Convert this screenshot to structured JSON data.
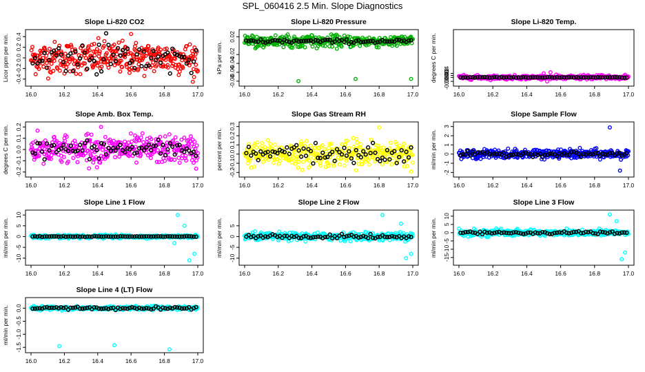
{
  "title": "SPL_060416  2.5 Min. Slope Diagnostics",
  "chart_data": [
    {
      "type": "scatter",
      "title": "Slope Li-820 CO2",
      "ylabel": "Licor ppm per min.",
      "color": "#ff0000",
      "xlim": [
        16.0,
        17.0
      ],
      "ylim": [
        -0.48,
        0.48
      ],
      "xticks": [
        "16.0",
        "16.2",
        "16.4",
        "16.6",
        "16.8",
        "17.0"
      ],
      "yticks": [
        -0.4,
        -0.2,
        0.0,
        0.2,
        0.4
      ],
      "ytick_labels": [
        "-0.4",
        "-0.2",
        "0.0",
        "0.2",
        "0.4"
      ],
      "spread": 0.27,
      "outliers": [
        [
          16.6,
          0.45
        ],
        [
          16.97,
          -0.45
        ]
      ],
      "bold_every": 5,
      "bold_scale": 1
    },
    {
      "type": "scatter",
      "title": "Slope Li-820 Pressure",
      "ylabel": "kPa per min.",
      "color": "#00b000",
      "xlim": [
        16.0,
        17.0
      ],
      "ylim": [
        -0.085,
        0.03
      ],
      "xticks": [
        "16.0",
        "16.2",
        "16.4",
        "16.6",
        "16.8",
        "17.0"
      ],
      "yticks": [
        -0.08,
        -0.06,
        -0.04,
        -0.02,
        0.02
      ],
      "ytick_labels": [
        "-0.08",
        "-0.06",
        "-0.04",
        "-0.02",
        "0.02"
      ],
      "spread": 0.012,
      "center": 0.01,
      "outliers": [
        [
          16.32,
          -0.08
        ],
        [
          16.66,
          -0.075
        ],
        [
          16.99,
          -0.075
        ]
      ],
      "bold_every": 4,
      "bold_scale": 0.4
    },
    {
      "type": "scatter",
      "title": "Slope Li-820 Temp.",
      "ylabel": "degrees C per min.",
      "color": "#ff00ff",
      "xlim": [
        16.0,
        17.0
      ],
      "ylim": [
        -0.006,
        0.045
      ],
      "xticks": [
        "16.0",
        "16.2",
        "16.4",
        "16.6",
        "16.8",
        "17.0"
      ],
      "yticks": [
        -0.004,
        0.0,
        0.002,
        0.004
      ],
      "ytick_labels": [
        "-0.004",
        "0.000",
        "0.002",
        "0.004"
      ],
      "spread": 0.0018,
      "outliers": [
        [
          16.5,
          0.004
        ],
        [
          16.52,
          -0.004
        ],
        [
          16.54,
          0.005
        ]
      ],
      "bold_every": 3,
      "bold_scale": 0.2
    },
    {
      "type": "scatter",
      "title": "Slope Amb. Box Temp.",
      "ylabel": "degrees C per min.",
      "color": "#ff00ff",
      "xlim": [
        16.0,
        17.0
      ],
      "ylim": [
        -0.22,
        0.22
      ],
      "xticks": [
        "16.0",
        "16.2",
        "16.4",
        "16.6",
        "16.8",
        "17.0"
      ],
      "yticks": [
        -0.2,
        -0.1,
        0.0,
        0.1,
        0.2
      ],
      "ytick_labels": [
        "-0.2",
        "-0.1",
        "0.0",
        "0.1",
        "0.2"
      ],
      "spread": 0.11,
      "outliers": [
        [
          16.42,
          0.2
        ],
        [
          16.99,
          -0.17
        ]
      ],
      "bold_every": 5,
      "bold_scale": 0.8
    },
    {
      "type": "scatter",
      "title": "Slope Gas Stream RH",
      "ylabel": "percent per min.",
      "color": "#ffff00",
      "xlim": [
        16.0,
        17.0
      ],
      "ylim": [
        -0.22,
        0.32
      ],
      "xticks": [
        "16.0",
        "16.2",
        "16.4",
        "16.6",
        "16.8",
        "17.0"
      ],
      "yticks": [
        -0.2,
        -0.1,
        0.0,
        0.1,
        0.2,
        0.3
      ],
      "ytick_labels": [
        "-0.2",
        "-0.1",
        "0.0",
        "0.1",
        "0.2",
        "0.3"
      ],
      "spread": 0.12,
      "outliers": [
        [
          16.8,
          0.29
        ],
        [
          16.99,
          -0.19
        ]
      ],
      "bold_every": 5,
      "bold_scale": 0.9
    },
    {
      "type": "scatter",
      "title": "Slope Sample Flow",
      "ylabel": "ml/min per min.",
      "color": "#0000ff",
      "xlim": [
        16.0,
        17.0
      ],
      "ylim": [
        -2.2,
        3.2
      ],
      "xticks": [
        "16.0",
        "16.2",
        "16.4",
        "16.6",
        "16.8",
        "17.0"
      ],
      "yticks": [
        -2,
        -1,
        0,
        1,
        2,
        3
      ],
      "ytick_labels": [
        "-2",
        "-1",
        "0",
        "1",
        "2",
        "3"
      ],
      "spread": 0.45,
      "outliers": [
        [
          16.89,
          2.9
        ],
        [
          16.95,
          -1.8
        ]
      ],
      "bold_every": 4,
      "bold_scale": 0.6
    },
    {
      "type": "scatter",
      "title": "Slope Line 1 Flow",
      "ylabel": "ml/min per min.",
      "color": "#00ffff",
      "xlim": [
        16.0,
        17.0
      ],
      "ylim": [
        -12,
        11
      ],
      "xticks": [
        "16.0",
        "16.2",
        "16.4",
        "16.6",
        "16.8",
        "17.0"
      ],
      "yticks": [
        -10,
        -5,
        0,
        5,
        10
      ],
      "ytick_labels": [
        "-10",
        "-5",
        "0",
        "5",
        "10"
      ],
      "spread": 0.7,
      "outliers": [
        [
          16.88,
          10
        ],
        [
          16.95,
          -11
        ],
        [
          16.98,
          -8
        ],
        [
          16.92,
          5
        ],
        [
          16.86,
          -3
        ]
      ],
      "bold_every": 4,
      "bold_scale": 0.2
    },
    {
      "type": "scatter",
      "title": "Slope Line 2 Flow",
      "ylabel": "ml/min per min.",
      "color": "#00ffff",
      "xlim": [
        16.0,
        17.0
      ],
      "ylim": [
        -12,
        11
      ],
      "xticks": [
        "16.0",
        "16.2",
        "16.4",
        "16.6",
        "16.8",
        "17.0"
      ],
      "yticks": [
        -10,
        -5,
        0,
        5
      ],
      "ytick_labels": [
        "-10",
        "-5",
        "0",
        "5"
      ],
      "spread": 1.6,
      "outliers": [
        [
          16.82,
          10
        ],
        [
          16.96,
          -10
        ],
        [
          16.99,
          -8
        ],
        [
          16.93,
          6
        ]
      ],
      "bold_every": 4,
      "bold_scale": 0.6
    },
    {
      "type": "scatter",
      "title": "Slope Line 3 Flow",
      "ylabel": "ml/min per min.",
      "color": "#00ffff",
      "xlim": [
        16.0,
        17.0
      ],
      "ylim": [
        -18,
        12
      ],
      "xticks": [
        "16.0",
        "16.2",
        "16.4",
        "16.6",
        "16.8",
        "17.0"
      ],
      "yticks": [
        -15,
        -10,
        -5,
        0,
        5,
        10
      ],
      "ytick_labels": [
        "-15",
        "-10",
        "-5",
        "0",
        "5",
        "10"
      ],
      "spread": 1.8,
      "outliers": [
        [
          16.89,
          11
        ],
        [
          16.96,
          -16
        ],
        [
          16.98,
          -12
        ],
        [
          16.93,
          7
        ]
      ],
      "bold_every": 4,
      "bold_scale": 0.6
    },
    {
      "type": "scatter",
      "title": "Slope Line 4 (LT) Flow",
      "ylabel": "ml/min per min.",
      "color": "#00ffff",
      "xlim": [
        16.0,
        17.0
      ],
      "ylim": [
        -1.6,
        0.3
      ],
      "xticks": [
        "16.0",
        "16.2",
        "16.4",
        "16.6",
        "16.8",
        "17.0"
      ],
      "yticks": [
        -1.5,
        -1.0,
        -0.5,
        0.0
      ],
      "ytick_labels": [
        "-1.5",
        "-1.0",
        "-0.5",
        "0.0"
      ],
      "spread": 0.06,
      "center": 0.0,
      "outliers": [
        [
          16.17,
          -1.45
        ],
        [
          16.5,
          -1.42
        ],
        [
          16.83,
          -1.58
        ]
      ],
      "bold_every": 3,
      "bold_scale": 1
    }
  ]
}
